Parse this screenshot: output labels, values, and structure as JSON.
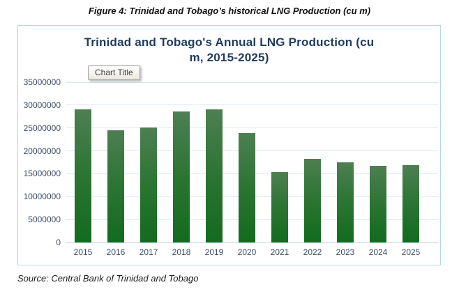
{
  "figure_caption": "Figure 4: Trinidad and Tobago’s historical LNG Production (cu m)",
  "tooltip": {
    "label": "Chart Title"
  },
  "source": {
    "text": "Source: Central Bank of Trinidad and Tobago"
  },
  "colors": {
    "title_navy": "#1f3a5c",
    "axis_label": "#3e4d63",
    "gridline": "#d9e6f3",
    "axis_line": "#c6daef",
    "chart_border": "#b5d6e6",
    "bar_top": "#4d7f52",
    "bar_mid": "#2a7431",
    "bar_bottom": "#136b1e"
  },
  "chart_data": {
    "type": "bar",
    "title": "Trinidad and Tobago's Annual LNG Production (cu m, 2015-2025)",
    "title_lines": [
      "Trinidad and Tobago's Annual LNG Production (cu",
      "m, 2015-2025)"
    ],
    "categories": [
      "2015",
      "2016",
      "2017",
      "2018",
      "2019",
      "2020",
      "2021",
      "2022",
      "2023",
      "2024",
      "2025"
    ],
    "values": [
      29100000,
      24500000,
      25100000,
      28600000,
      29100000,
      23900000,
      15300000,
      18200000,
      17500000,
      16800000,
      16900000
    ],
    "xlabel": "",
    "ylabel": "",
    "ylim": [
      0,
      35000000
    ],
    "ytick_interval": 5000000,
    "ytick_labels": [
      "0",
      "5000000",
      "10000000",
      "15000000",
      "20000000",
      "25000000",
      "30000000",
      "35000000"
    ],
    "grid": "horizontal",
    "legend": "none",
    "units": "cu m"
  }
}
